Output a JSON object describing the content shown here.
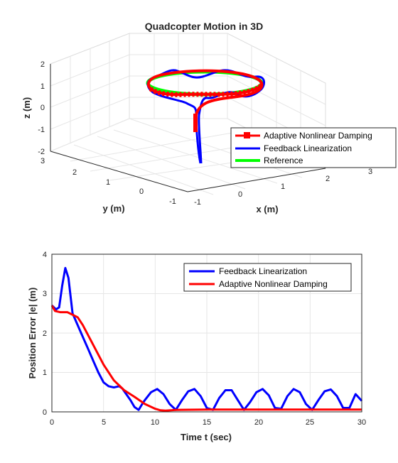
{
  "top_chart": {
    "title": "Quadcopter Motion in 3D",
    "xlabel": "x (m)",
    "ylabel": "y (m)",
    "zlabel": "z (m)",
    "x_ticks": [
      "-1",
      "0",
      "1",
      "2",
      "3"
    ],
    "y_ticks": [
      "-1",
      "0",
      "1",
      "2",
      "3"
    ],
    "z_ticks": [
      "-2",
      "-1",
      "0",
      "1",
      "2"
    ],
    "legend": [
      "Adaptive Nonlinear Damping",
      "Feedback Linearization",
      "Reference"
    ],
    "colors": {
      "adaptive": "#ff0000",
      "feedback": "#0000ff",
      "reference": "#00ff00"
    }
  },
  "bottom_chart": {
    "xlabel": "Time t (sec)",
    "ylabel": "Position Error |e| (m)",
    "x_ticks": [
      "0",
      "5",
      "10",
      "15",
      "20",
      "25",
      "30"
    ],
    "y_ticks": [
      "0",
      "1",
      "2",
      "3",
      "4"
    ],
    "legend": [
      "Feedback Linearization",
      "Adaptive Nonlinear Damping"
    ]
  },
  "chart_data": [
    {
      "type": "line",
      "chart": "3d",
      "title": "Quadcopter Motion in 3D",
      "xlabel": "x (m)",
      "ylabel": "y (m)",
      "zlabel": "z (m)",
      "xlim": [
        -1,
        3
      ],
      "ylim": [
        -1,
        3
      ],
      "zlim": [
        -2,
        2
      ],
      "grid": true,
      "legend_position": "lower-right",
      "series": [
        {
          "name": "Adaptive Nonlinear Damping",
          "color": "#ff0000",
          "marker": "square",
          "x": [
            0.9,
            0.95,
            1.0,
            1.0,
            1.0
          ],
          "y": [
            1.0,
            1.0,
            1.0,
            1.0,
            1.0
          ],
          "z": [
            -1.2,
            -0.6,
            0.0,
            0.6,
            1.0
          ],
          "note_shape": "rises vertically then follows a circle of radius 1 at z=1"
        },
        {
          "name": "Feedback Linearization",
          "color": "#0000ff",
          "x": [
            1.0,
            1.1,
            1.0,
            1.0
          ],
          "y": [
            1.0,
            1.0,
            1.0,
            1.0
          ],
          "z": [
            -2.1,
            -0.5,
            0.5,
            1.0
          ],
          "note_shape": "dips to about z=-2 then oscillates around a circle of radius 1 at z=1"
        },
        {
          "name": "Reference",
          "color": "#00ff00",
          "x_center": 1,
          "y_center": 1,
          "radius": 1,
          "z": 1
        }
      ]
    },
    {
      "type": "line",
      "xlabel": "Time t (sec)",
      "ylabel": "Position Error |e| (m)",
      "xlim": [
        0,
        30
      ],
      "ylim": [
        0,
        4
      ],
      "grid": true,
      "legend_position": "top-right",
      "series": [
        {
          "name": "Feedback Linearization",
          "color": "#0000ff",
          "x": [
            0,
            0.4,
            0.7,
            1.0,
            1.3,
            1.6,
            2.0,
            2.5,
            3.0,
            3.5,
            4.0,
            4.5,
            5.0,
            5.5,
            6.0,
            6.5,
            6.8,
            7.2,
            7.6,
            8.0,
            8.4,
            8.7,
            9.0,
            9.6,
            10.2,
            10.8,
            11.4,
            12.0,
            12.6,
            13.2,
            13.8,
            14.4,
            15.0,
            15.6,
            16.2,
            16.8,
            17.4,
            18.0,
            18.6,
            19.2,
            19.8,
            20.4,
            21.0,
            21.6,
            22.2,
            22.8,
            23.4,
            24.0,
            24.6,
            25.2,
            25.8,
            26.4,
            27.0,
            27.6,
            28.2,
            28.8,
            29.4,
            30.0
          ],
          "y": [
            2.7,
            2.6,
            2.65,
            3.2,
            3.65,
            3.4,
            2.5,
            2.2,
            1.9,
            1.6,
            1.3,
            1.0,
            0.75,
            0.65,
            0.62,
            0.65,
            0.6,
            0.45,
            0.3,
            0.12,
            0.05,
            0.18,
            0.3,
            0.5,
            0.58,
            0.45,
            0.2,
            0.05,
            0.3,
            0.52,
            0.58,
            0.4,
            0.1,
            0.05,
            0.35,
            0.55,
            0.55,
            0.3,
            0.05,
            0.25,
            0.5,
            0.58,
            0.42,
            0.1,
            0.08,
            0.4,
            0.58,
            0.5,
            0.2,
            0.05,
            0.3,
            0.52,
            0.57,
            0.4,
            0.1,
            0.1,
            0.45,
            0.28
          ]
        },
        {
          "name": "Adaptive Nonlinear Damping",
          "color": "#ff0000",
          "x": [
            0,
            0.3,
            0.8,
            1.5,
            2.5,
            3.0,
            4.0,
            5.0,
            6.0,
            7.0,
            8.0,
            9.0,
            10.0,
            10.5,
            11.0,
            12.0,
            15.0,
            20.0,
            25.0,
            30.0
          ],
          "y": [
            2.7,
            2.56,
            2.53,
            2.53,
            2.4,
            2.2,
            1.7,
            1.2,
            0.8,
            0.55,
            0.38,
            0.2,
            0.08,
            0.04,
            0.03,
            0.05,
            0.06,
            0.06,
            0.06,
            0.06
          ]
        }
      ]
    }
  ]
}
